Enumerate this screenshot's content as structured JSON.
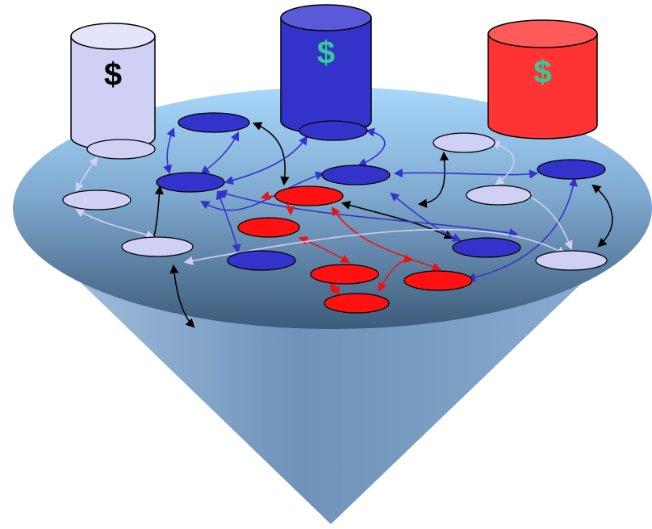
{
  "cylinders": [
    {
      "label": "$"
    },
    {
      "label": "$"
    },
    {
      "label": "$"
    }
  ]
}
